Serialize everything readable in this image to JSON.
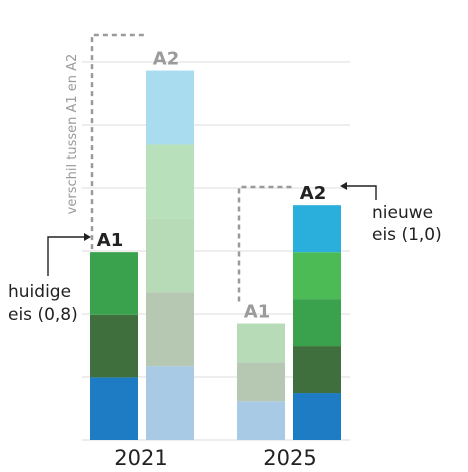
{
  "chart_data": {
    "type": "bar",
    "stacked": true,
    "grid": true,
    "categories": [
      "2021",
      "2025"
    ],
    "bars": [
      {
        "category": "2021",
        "label": "A1",
        "label_color": "#222222",
        "segments": [
          {
            "value": 1.0,
            "color": "#1d7cc4"
          },
          {
            "value": 1.0,
            "color": "#3e6f3c"
          },
          {
            "value": 1.0,
            "color": "#3aa14c"
          }
        ]
      },
      {
        "category": "2021",
        "label": "A2",
        "label_color": "#9b9b9b",
        "segments": [
          {
            "value": 1.18,
            "color": "#a9cae5"
          },
          {
            "value": 1.18,
            "color": "#b6c8b2"
          },
          {
            "value": 1.18,
            "color": "#b7dbb7"
          },
          {
            "value": 1.18,
            "color": "#b8e1bb"
          },
          {
            "value": 1.18,
            "color": "#a9dcee"
          }
        ]
      },
      {
        "category": "2025",
        "label": "A1",
        "label_color": "#9b9b9b",
        "segments": [
          {
            "value": 0.62,
            "color": "#a9cae5"
          },
          {
            "value": 0.62,
            "color": "#b6c8b2"
          },
          {
            "value": 0.62,
            "color": "#b7dbb7"
          }
        ]
      },
      {
        "category": "2025",
        "label": "A2",
        "label_color": "#222222",
        "segments": [
          {
            "value": 0.75,
            "color": "#1d7cc4"
          },
          {
            "value": 0.75,
            "color": "#3e6f3c"
          },
          {
            "value": 0.75,
            "color": "#3aa14c"
          },
          {
            "value": 0.75,
            "color": "#4dbb55"
          },
          {
            "value": 0.75,
            "color": "#2aafdd"
          }
        ]
      }
    ],
    "ylim": [
      0,
      6.5
    ],
    "annotations": {
      "difference_label": "verschil tussen A1 en A2",
      "current_requirement": [
        "huidige",
        "eis (0,8)"
      ],
      "new_requirement": [
        "nieuwe",
        "eis (1,0)"
      ]
    }
  }
}
